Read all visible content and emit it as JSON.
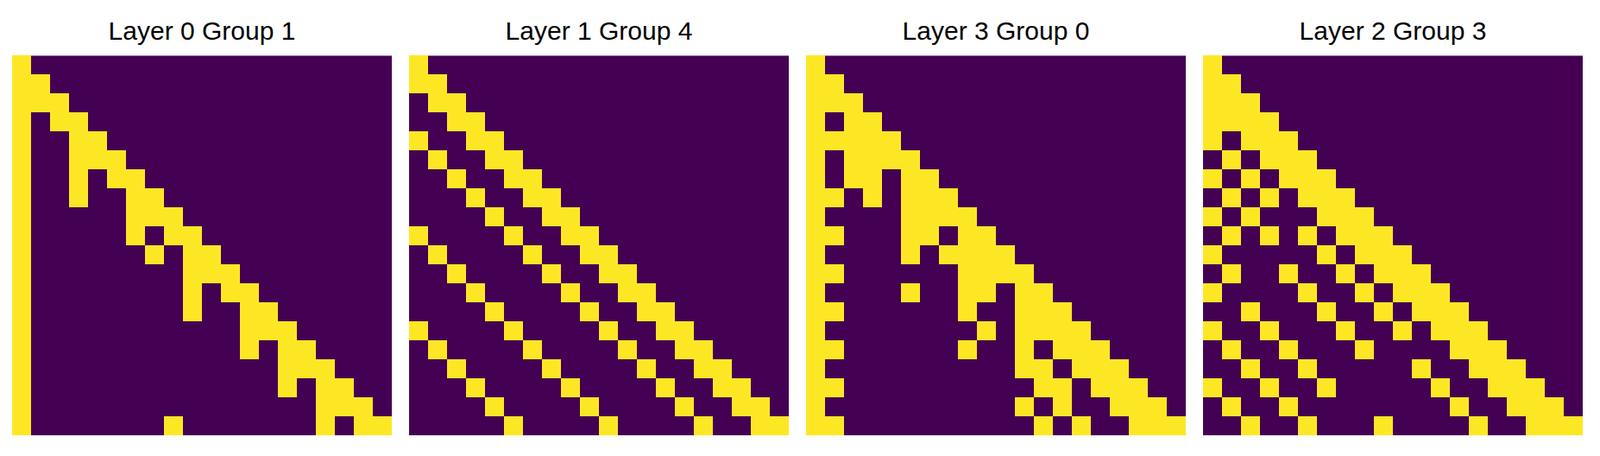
{
  "chart_data": [
    {
      "type": "heatmap",
      "title": "Layer 0 Group 1",
      "tick_labels": false,
      "colors": [
        "#440154",
        "#fde725"
      ],
      "cells": [
        [
          1
        ],
        [
          1,
          1
        ],
        [
          1,
          1,
          1
        ],
        [
          1,
          0,
          1,
          1
        ],
        [
          1,
          0,
          0,
          1,
          1
        ],
        [
          1,
          0,
          0,
          1,
          1,
          1
        ],
        [
          1,
          0,
          0,
          1,
          0,
          1,
          1
        ],
        [
          1,
          0,
          0,
          1,
          0,
          0,
          1,
          1
        ],
        [
          1,
          0,
          0,
          0,
          0,
          0,
          1,
          1,
          1
        ],
        [
          1,
          0,
          0,
          0,
          0,
          0,
          1,
          0,
          1,
          1
        ],
        [
          1,
          0,
          0,
          0,
          0,
          0,
          0,
          1,
          0,
          1,
          1
        ],
        [
          1,
          0,
          0,
          0,
          0,
          0,
          0,
          0,
          0,
          1,
          1,
          1
        ],
        [
          1,
          0,
          0,
          0,
          0,
          0,
          0,
          0,
          0,
          1,
          0,
          1,
          1
        ],
        [
          1,
          0,
          0,
          0,
          0,
          0,
          0,
          0,
          0,
          1,
          0,
          0,
          1,
          1
        ],
        [
          1,
          0,
          0,
          0,
          0,
          0,
          0,
          0,
          0,
          0,
          0,
          0,
          1,
          1,
          1
        ],
        [
          1,
          0,
          0,
          0,
          0,
          0,
          0,
          0,
          0,
          0,
          0,
          0,
          1,
          0,
          1,
          1
        ],
        [
          1,
          0,
          0,
          0,
          0,
          0,
          0,
          0,
          0,
          0,
          0,
          0,
          0,
          0,
          1,
          1,
          1
        ],
        [
          1,
          0,
          0,
          0,
          0,
          0,
          0,
          0,
          0,
          0,
          0,
          0,
          0,
          0,
          1,
          0,
          1,
          1
        ],
        [
          1,
          0,
          0,
          0,
          0,
          0,
          0,
          0,
          0,
          0,
          0,
          0,
          0,
          0,
          0,
          0,
          1,
          1,
          1
        ],
        [
          1,
          0,
          0,
          0,
          0,
          0,
          0,
          0,
          1,
          0,
          0,
          0,
          0,
          0,
          0,
          0,
          1,
          0,
          1,
          1
        ]
      ]
    },
    {
      "type": "heatmap",
      "title": "Layer 1 Group 4",
      "tick_labels": false,
      "colors": [
        "#440154",
        "#fde725"
      ],
      "cells": [
        [
          1
        ],
        [
          1,
          1
        ],
        [
          0,
          1,
          1
        ],
        [
          0,
          0,
          1,
          1
        ],
        [
          1,
          0,
          0,
          1,
          1
        ],
        [
          0,
          1,
          0,
          0,
          1,
          1
        ],
        [
          0,
          0,
          1,
          0,
          0,
          1,
          1
        ],
        [
          0,
          0,
          0,
          1,
          0,
          0,
          1,
          1
        ],
        [
          0,
          0,
          0,
          0,
          1,
          0,
          0,
          1,
          1
        ],
        [
          1,
          0,
          0,
          0,
          0,
          1,
          0,
          0,
          1,
          1
        ],
        [
          0,
          1,
          0,
          0,
          0,
          0,
          1,
          0,
          0,
          1,
          1
        ],
        [
          0,
          0,
          1,
          0,
          0,
          0,
          0,
          1,
          0,
          0,
          1,
          1
        ],
        [
          0,
          0,
          0,
          1,
          0,
          0,
          0,
          0,
          1,
          0,
          0,
          1,
          1
        ],
        [
          0,
          0,
          0,
          0,
          1,
          0,
          0,
          0,
          0,
          1,
          0,
          0,
          1,
          1
        ],
        [
          1,
          0,
          0,
          0,
          0,
          1,
          0,
          0,
          0,
          0,
          1,
          0,
          0,
          1,
          1
        ],
        [
          0,
          1,
          0,
          0,
          0,
          0,
          1,
          0,
          0,
          0,
          0,
          1,
          0,
          0,
          1,
          1
        ],
        [
          0,
          0,
          1,
          0,
          0,
          0,
          0,
          1,
          0,
          0,
          0,
          0,
          1,
          0,
          0,
          1,
          1
        ],
        [
          0,
          0,
          0,
          1,
          0,
          0,
          0,
          0,
          1,
          0,
          0,
          0,
          0,
          1,
          0,
          0,
          1,
          1
        ],
        [
          0,
          0,
          0,
          0,
          1,
          0,
          0,
          0,
          0,
          1,
          0,
          0,
          0,
          0,
          1,
          0,
          0,
          1,
          1
        ],
        [
          0,
          0,
          0,
          0,
          0,
          1,
          0,
          0,
          0,
          0,
          1,
          0,
          0,
          0,
          0,
          1,
          0,
          0,
          1,
          1
        ]
      ]
    },
    {
      "type": "heatmap",
      "title": "Layer 3 Group 0",
      "tick_labels": false,
      "colors": [
        "#440154",
        "#fde725"
      ],
      "cells": [
        [
          1
        ],
        [
          1,
          1
        ],
        [
          1,
          1,
          1
        ],
        [
          1,
          0,
          1,
          1
        ],
        [
          1,
          1,
          1,
          1,
          1
        ],
        [
          1,
          0,
          1,
          1,
          1,
          1
        ],
        [
          1,
          0,
          1,
          1,
          0,
          1,
          1
        ],
        [
          1,
          1,
          0,
          1,
          0,
          1,
          1,
          1
        ],
        [
          1,
          0,
          0,
          0,
          0,
          1,
          1,
          1,
          1
        ],
        [
          1,
          1,
          0,
          0,
          0,
          1,
          1,
          0,
          1,
          1
        ],
        [
          1,
          0,
          0,
          0,
          0,
          1,
          0,
          1,
          1,
          1,
          1
        ],
        [
          1,
          1,
          0,
          0,
          0,
          0,
          0,
          0,
          1,
          1,
          1,
          1
        ],
        [
          1,
          0,
          0,
          0,
          0,
          1,
          0,
          0,
          1,
          1,
          0,
          1,
          1
        ],
        [
          1,
          1,
          0,
          0,
          0,
          0,
          0,
          0,
          1,
          0,
          0,
          1,
          1,
          1
        ],
        [
          1,
          0,
          0,
          0,
          0,
          0,
          0,
          0,
          0,
          1,
          0,
          1,
          1,
          1,
          1
        ],
        [
          1,
          1,
          0,
          0,
          0,
          0,
          0,
          0,
          1,
          0,
          0,
          1,
          0,
          1,
          1,
          1
        ],
        [
          1,
          0,
          0,
          0,
          0,
          0,
          0,
          0,
          0,
          0,
          0,
          1,
          1,
          0,
          1,
          1,
          1
        ],
        [
          1,
          1,
          0,
          0,
          0,
          0,
          0,
          0,
          0,
          0,
          0,
          0,
          1,
          1,
          0,
          1,
          1,
          1
        ],
        [
          1,
          0,
          0,
          0,
          0,
          0,
          0,
          0,
          0,
          0,
          0,
          1,
          0,
          1,
          0,
          0,
          1,
          1,
          1
        ],
        [
          1,
          1,
          0,
          0,
          0,
          0,
          0,
          0,
          0,
          0,
          0,
          0,
          1,
          0,
          1,
          0,
          0,
          1,
          1,
          1
        ]
      ]
    },
    {
      "type": "heatmap",
      "title": "Layer 2 Group 3",
      "tick_labels": false,
      "colors": [
        "#440154",
        "#fde725"
      ],
      "cells": [
        [
          1
        ],
        [
          1,
          1
        ],
        [
          1,
          1,
          1
        ],
        [
          1,
          1,
          1,
          1
        ],
        [
          1,
          0,
          1,
          1,
          1
        ],
        [
          0,
          1,
          0,
          1,
          1,
          1
        ],
        [
          1,
          0,
          1,
          0,
          1,
          1,
          1
        ],
        [
          0,
          1,
          0,
          1,
          0,
          1,
          1,
          1
        ],
        [
          1,
          0,
          1,
          0,
          0,
          0,
          1,
          1,
          1
        ],
        [
          0,
          1,
          0,
          1,
          0,
          1,
          0,
          1,
          1,
          1
        ],
        [
          1,
          0,
          0,
          0,
          0,
          0,
          1,
          0,
          1,
          1,
          1
        ],
        [
          0,
          1,
          0,
          0,
          1,
          0,
          0,
          1,
          0,
          1,
          1,
          1
        ],
        [
          1,
          0,
          0,
          0,
          0,
          1,
          0,
          0,
          1,
          0,
          1,
          1,
          1
        ],
        [
          0,
          0,
          1,
          0,
          0,
          0,
          1,
          0,
          0,
          1,
          0,
          1,
          1,
          1
        ],
        [
          1,
          0,
          0,
          1,
          0,
          0,
          0,
          1,
          0,
          0,
          1,
          0,
          1,
          1,
          1
        ],
        [
          0,
          1,
          0,
          0,
          1,
          0,
          0,
          0,
          1,
          0,
          0,
          0,
          0,
          1,
          1,
          1
        ],
        [
          0,
          0,
          1,
          0,
          0,
          1,
          0,
          0,
          0,
          0,
          0,
          1,
          0,
          0,
          1,
          1,
          1
        ],
        [
          1,
          0,
          0,
          1,
          0,
          0,
          1,
          0,
          0,
          0,
          0,
          0,
          1,
          0,
          0,
          1,
          1,
          1
        ],
        [
          0,
          1,
          0,
          0,
          1,
          0,
          0,
          0,
          0,
          0,
          0,
          0,
          0,
          1,
          0,
          0,
          1,
          1,
          1
        ],
        [
          0,
          0,
          1,
          0,
          0,
          1,
          0,
          0,
          0,
          1,
          0,
          0,
          0,
          0,
          1,
          0,
          0,
          1,
          1,
          1
        ]
      ]
    }
  ]
}
